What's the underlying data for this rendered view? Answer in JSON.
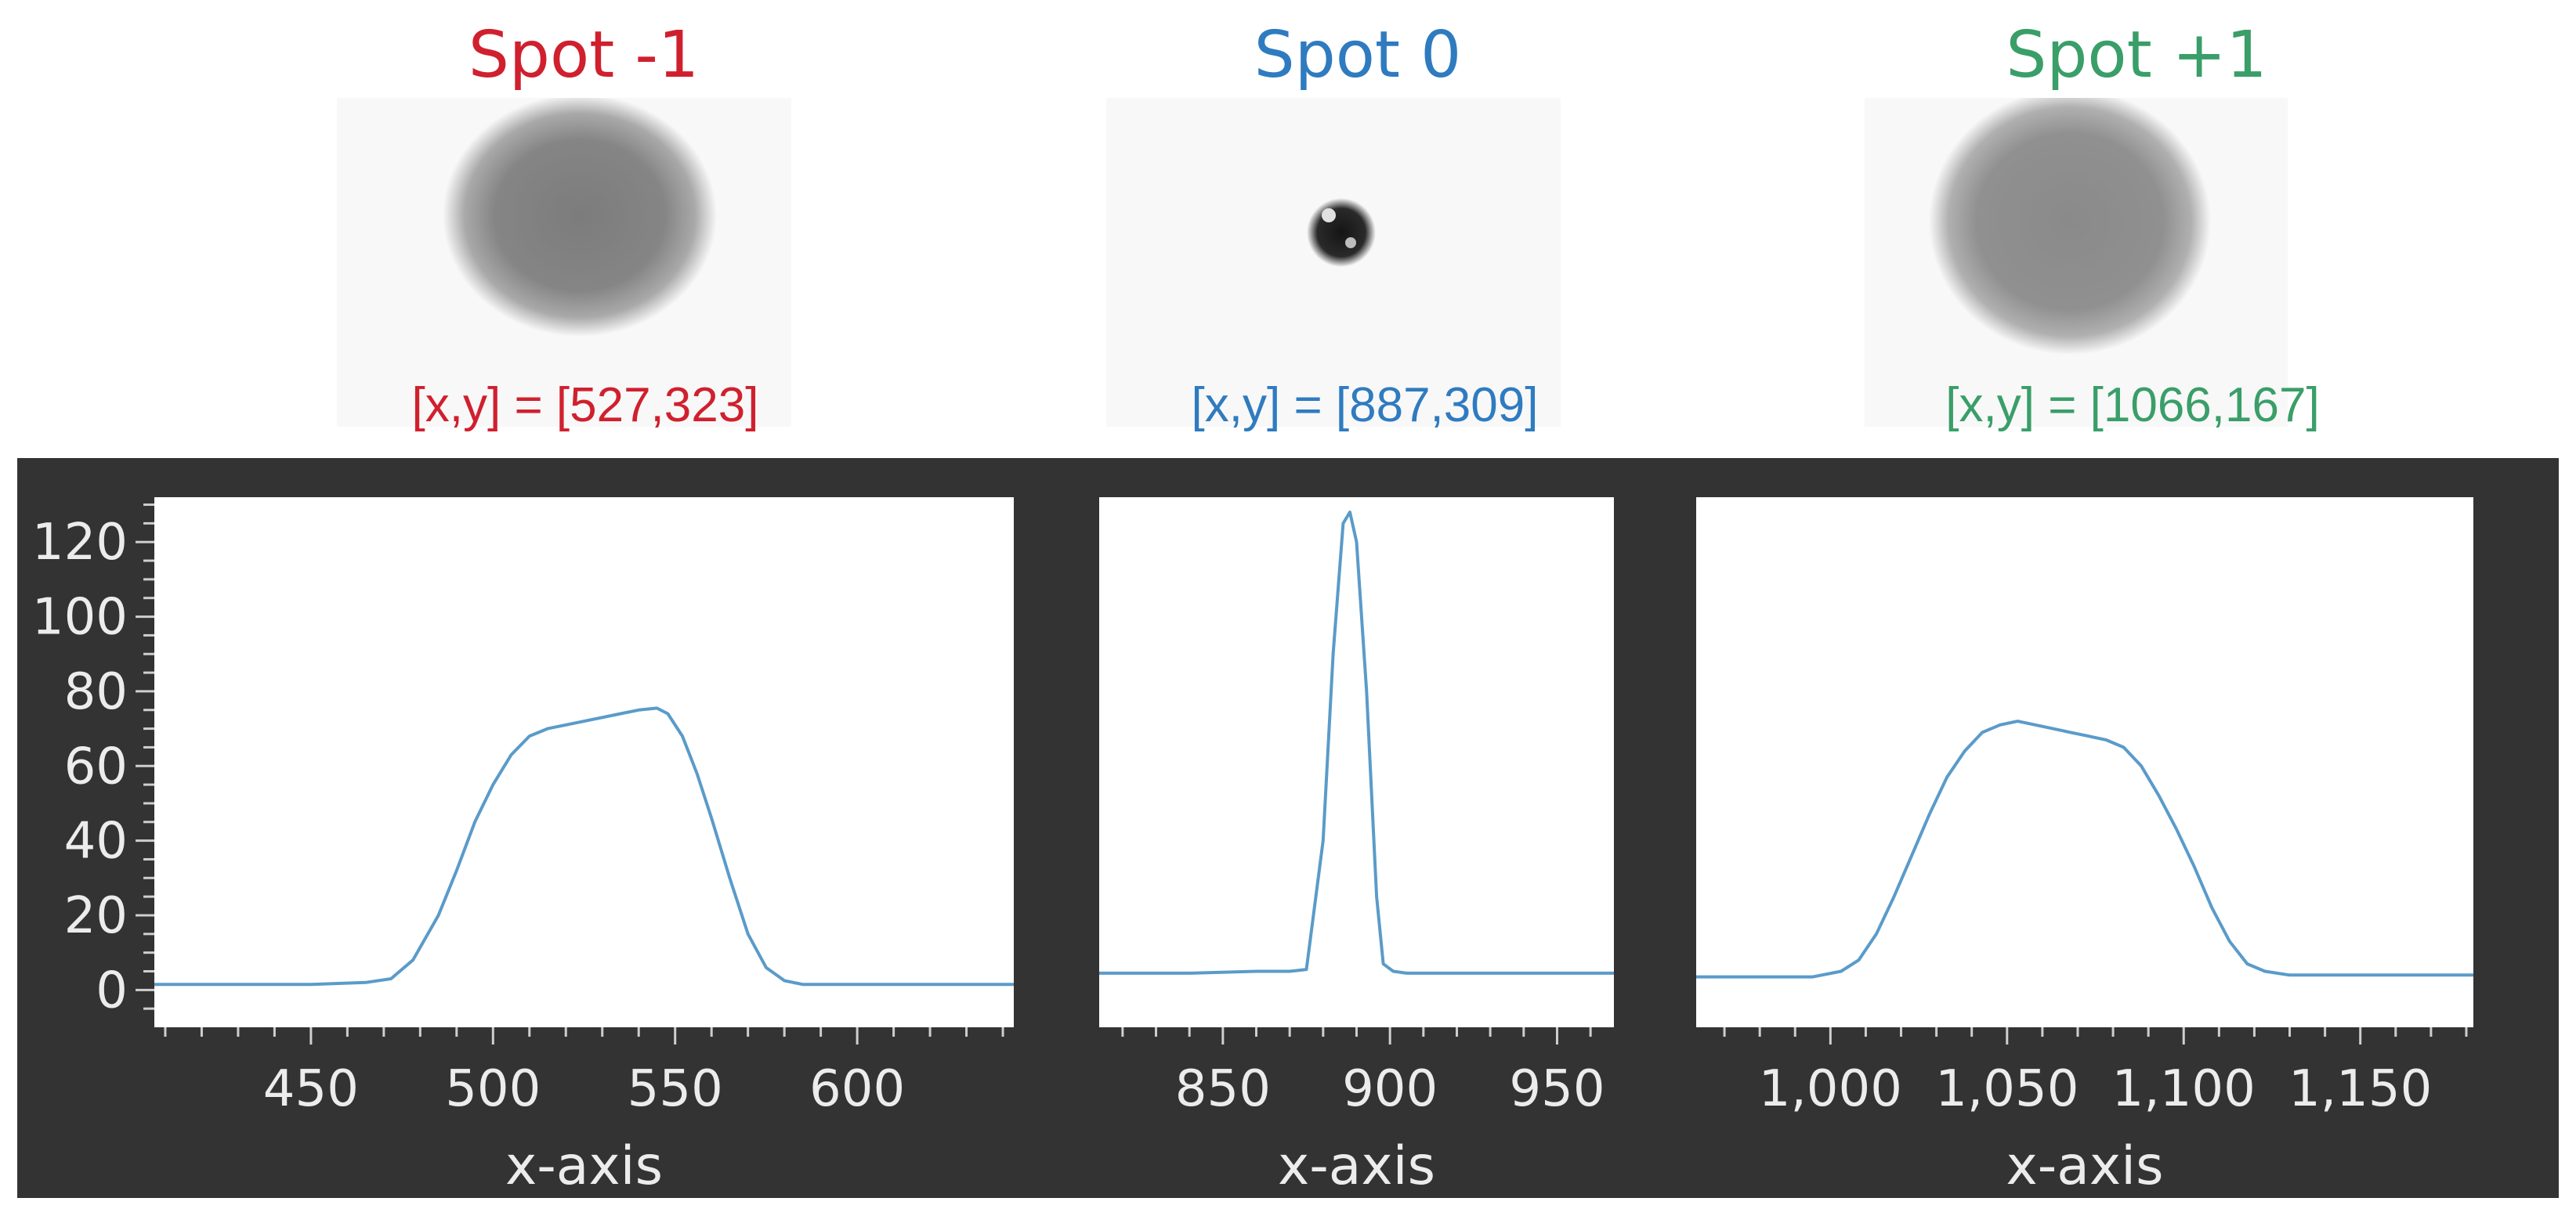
{
  "spots": [
    {
      "title": "Spot -1",
      "coord": "[x,y] = [527,323]",
      "color": "#d0202e",
      "blob": "diffuse"
    },
    {
      "title": "Spot 0",
      "coord": "[x,y] = [887,309]",
      "color": "#2f7bc0",
      "blob": "focused"
    },
    {
      "title": "Spot +1",
      "coord": "[x,y] = [1066,167]",
      "color": "#3a9e69",
      "blob": "diffuse"
    }
  ],
  "colors": {
    "panel": "#333333",
    "plot_bg": "#ffffff",
    "line": "#5a9bc9",
    "tick_text": "#ececec"
  },
  "chart_data": [
    {
      "type": "line",
      "xlabel": "x-axis",
      "xlim": [
        407,
        643
      ],
      "ylim": [
        -10,
        132
      ],
      "xticks": [
        450,
        500,
        550,
        600
      ],
      "xticklabels": [
        "450",
        "500",
        "550",
        "600"
      ],
      "yticks": [
        0,
        20,
        40,
        60,
        80,
        100,
        120
      ],
      "yticklabels": [
        "0",
        "20",
        "40",
        "60",
        "80",
        "100",
        "120"
      ],
      "show_yaxis": true,
      "grid": false,
      "x": [
        407,
        430,
        450,
        465,
        472,
        478,
        485,
        490,
        495,
        500,
        505,
        510,
        515,
        520,
        525,
        530,
        535,
        540,
        545,
        548,
        552,
        556,
        560,
        565,
        570,
        575,
        580,
        585,
        590,
        600,
        620,
        643
      ],
      "y": [
        1.5,
        1.5,
        1.5,
        2,
        3,
        8,
        20,
        32,
        45,
        55,
        63,
        68,
        70,
        71,
        72,
        73,
        74,
        75,
        75.5,
        74,
        68,
        58,
        46,
        30,
        15,
        6,
        2.5,
        1.5,
        1.5,
        1.5,
        1.5,
        1.5
      ]
    },
    {
      "type": "line",
      "xlabel": "x-axis",
      "xlim": [
        813,
        967
      ],
      "ylim": [
        -10,
        132
      ],
      "xticks": [
        850,
        900,
        950
      ],
      "xticklabels": [
        "850",
        "900",
        "950"
      ],
      "show_yaxis": false,
      "grid": false,
      "x": [
        813,
        840,
        860,
        870,
        875,
        880,
        883,
        886,
        888,
        890,
        893,
        896,
        898,
        901,
        905,
        920,
        940,
        967
      ],
      "y": [
        4.5,
        4.5,
        5,
        5,
        5.5,
        40,
        90,
        125,
        128,
        120,
        80,
        25,
        7,
        5,
        4.5,
        4.5,
        4.5,
        4.5
      ]
    },
    {
      "type": "line",
      "xlabel": "x-axis",
      "xlim": [
        962,
        1182
      ],
      "ylim": [
        -10,
        132
      ],
      "xticks": [
        1000,
        1050,
        1100,
        1150
      ],
      "xticklabels": [
        "1,000",
        "1,050",
        "1,100",
        "1,150"
      ],
      "show_yaxis": false,
      "grid": false,
      "x": [
        962,
        980,
        995,
        1003,
        1008,
        1013,
        1018,
        1023,
        1028,
        1033,
        1038,
        1043,
        1048,
        1053,
        1058,
        1063,
        1068,
        1073,
        1078,
        1083,
        1088,
        1093,
        1098,
        1103,
        1108,
        1113,
        1118,
        1123,
        1130,
        1150,
        1182
      ],
      "y": [
        3.5,
        3.5,
        3.5,
        5,
        8,
        15,
        25,
        36,
        47,
        57,
        64,
        69,
        71,
        72,
        71,
        70,
        69,
        68,
        67,
        65,
        60,
        52,
        43,
        33,
        22,
        13,
        7,
        5,
        4,
        4,
        4
      ]
    }
  ]
}
